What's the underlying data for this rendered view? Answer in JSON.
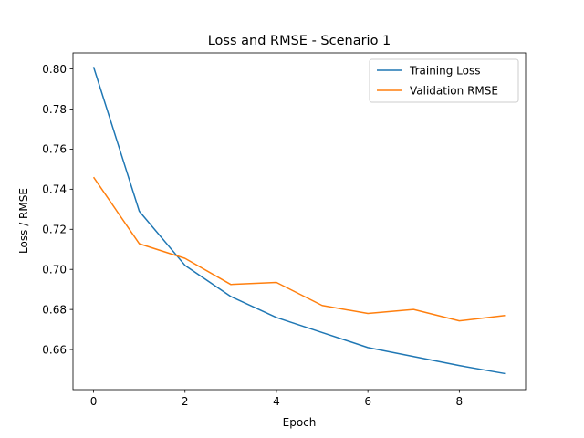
{
  "chart_data": {
    "type": "line",
    "title": "Loss and RMSE - Scenario 1",
    "xlabel": "Epoch",
    "ylabel": "Loss / RMSE",
    "x": [
      0,
      1,
      2,
      3,
      4,
      5,
      6,
      7,
      8,
      9
    ],
    "xlim": [
      -0.45,
      9.45
    ],
    "ylim": [
      0.64,
      0.808
    ],
    "xticks": [
      0,
      2,
      4,
      6,
      8
    ],
    "xtick_labels": [
      "0",
      "2",
      "4",
      "6",
      "8"
    ],
    "yticks": [
      0.66,
      0.68,
      0.7,
      0.72,
      0.74,
      0.76,
      0.78,
      0.8
    ],
    "ytick_labels": [
      "0.66",
      "0.68",
      "0.70",
      "0.72",
      "0.74",
      "0.76",
      "0.78",
      "0.80"
    ],
    "grid": false,
    "legend_position": "top-right",
    "series": [
      {
        "name": "Training Loss",
        "color": "#1f77b4",
        "values": [
          0.801,
          0.729,
          0.702,
          0.6865,
          0.676,
          0.6685,
          0.661,
          0.6565,
          0.652,
          0.648
        ]
      },
      {
        "name": "Validation RMSE",
        "color": "#ff7f0e",
        "values": [
          0.746,
          0.7128,
          0.7055,
          0.6925,
          0.6935,
          0.682,
          0.678,
          0.68,
          0.6743,
          0.677
        ]
      }
    ]
  }
}
